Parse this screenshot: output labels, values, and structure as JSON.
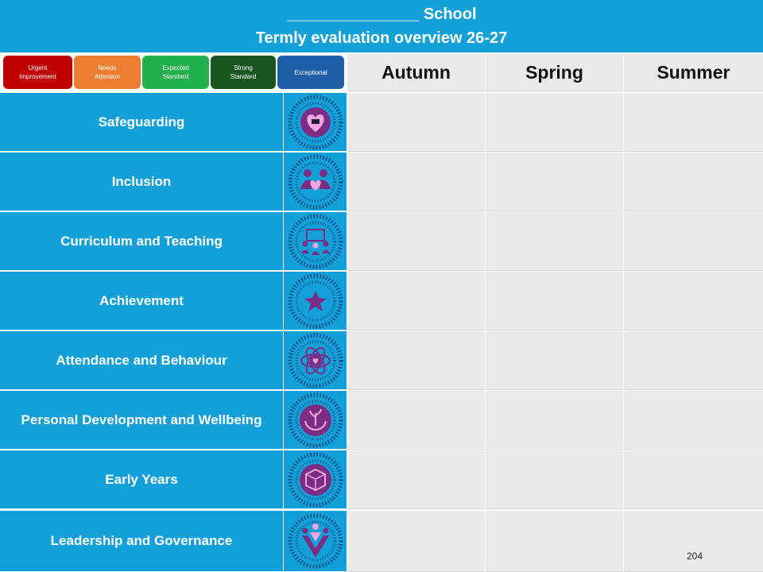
{
  "header": {
    "line1": "_______________ School",
    "line2": "Termly evaluation overview 26-27"
  },
  "legend": [
    {
      "label": "Urgent\nImprovement",
      "color": "#c00000"
    },
    {
      "label": "Needs\nAttention",
      "color": "#ed7d31"
    },
    {
      "label": "Expected\nStandard",
      "color": "#21b04b"
    },
    {
      "label": "Strong\nStandard",
      "color": "#19561f"
    },
    {
      "label": "Exceptional",
      "color": "#1f5fa8"
    }
  ],
  "seasons": [
    "Autumn",
    "Spring",
    "Summer"
  ],
  "areas": [
    {
      "label": "Safeguarding",
      "icon": "heart-shield-icon"
    },
    {
      "label": "Inclusion",
      "icon": "inclusion-people-heart-icon"
    },
    {
      "label": "Curriculum and Teaching",
      "icon": "classroom-board-icon"
    },
    {
      "label": "Achievement",
      "icon": "star-icon"
    },
    {
      "label": "Attendance and Behaviour",
      "icon": "atom-heart-icon"
    },
    {
      "label": "Personal Development and Wellbeing",
      "icon": "hands-plant-icon"
    },
    {
      "label": "Early Years",
      "icon": "alphabet-block-icon"
    },
    {
      "label": "Leadership and Governance",
      "icon": "leadership-figures-icon"
    }
  ],
  "colors": {
    "header_bg": "#139fd8",
    "cell_bg": "#e8eaec",
    "icon_purple": "#7b2c83",
    "icon_pink": "#f3a6de"
  },
  "page_number": "204"
}
